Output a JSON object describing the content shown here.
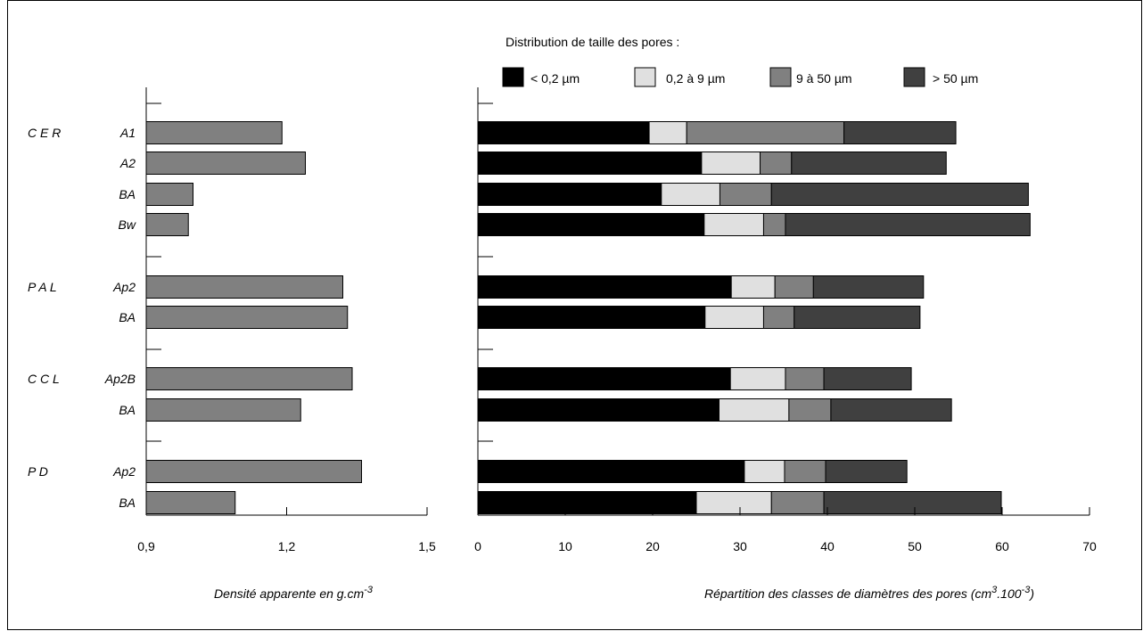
{
  "legend": {
    "title": "Distribution de taille des pores :",
    "items": [
      {
        "label": "< 0,2 µm",
        "color": "#000000"
      },
      {
        "label": "0,2 à  9 µm",
        "color": "#e0e0e0"
      },
      {
        "label": "9 à  50 µm",
        "color": "#808080"
      },
      {
        "label": "> 50 µm",
        "color": "#404040"
      }
    ]
  },
  "chart_data": [
    {
      "type": "bar",
      "orientation": "horizontal",
      "xlabel": "Densité apparente en g.cm",
      "xlabel_sup": "-3",
      "xlim": [
        0.9,
        1.5
      ],
      "xticks": [
        "0,9",
        "1,2",
        "1,5"
      ],
      "bar_color": "#808080",
      "groups": [
        {
          "site": "C E R",
          "horizons": [
            "A1",
            "A2",
            "BA",
            "Bw"
          ]
        },
        {
          "site": "P A L",
          "horizons": [
            "Ap2",
            "BA"
          ]
        },
        {
          "site": "C C L",
          "horizons": [
            "Ap2B",
            "BA"
          ]
        },
        {
          "site": "P D",
          "horizons": [
            "Ap2",
            "BA"
          ]
        }
      ],
      "values": [
        1.19,
        1.24,
        1.0,
        0.99,
        1.32,
        1.33,
        1.34,
        1.23,
        1.36,
        1.09
      ]
    },
    {
      "type": "bar",
      "orientation": "horizontal",
      "stacked": true,
      "xlabel": "Répartition des classes de diamètres des pores  (cm",
      "xlabel_sup1": "3",
      "xlabel_mid": ".100",
      "xlabel_sup2": "-3",
      "xlabel_end": ")",
      "xlim": [
        0,
        70
      ],
      "xticks": [
        "0",
        "10",
        "20",
        "30",
        "40",
        "50",
        "60",
        "70"
      ],
      "series": [
        {
          "name": "< 0,2 µm",
          "values": [
            19.6,
            25.6,
            21.0,
            25.9,
            29.0,
            26.0,
            28.9,
            27.6,
            30.5,
            25.0
          ]
        },
        {
          "name": "0,2 à  9 µm",
          "values": [
            4.3,
            6.7,
            6.7,
            6.8,
            5.0,
            6.7,
            6.3,
            8.0,
            4.6,
            8.6
          ]
        },
        {
          "name": "9 à  50 µm",
          "values": [
            18.0,
            3.6,
            5.9,
            2.5,
            4.4,
            3.5,
            4.4,
            4.8,
            4.7,
            6.0
          ]
        },
        {
          "name": "> 50 µm",
          "values": [
            12.8,
            17.7,
            29.4,
            28.0,
            12.6,
            14.4,
            10.0,
            13.8,
            9.3,
            20.3
          ]
        }
      ]
    }
  ]
}
